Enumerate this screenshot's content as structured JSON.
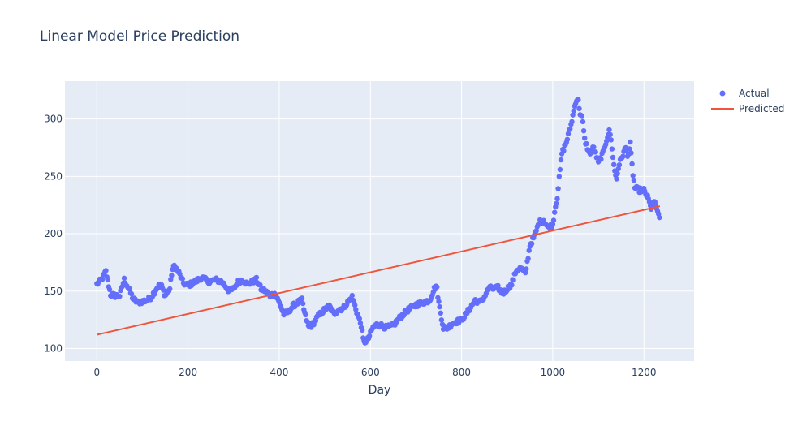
{
  "chart_data": {
    "type": "scatter",
    "title": "Linear Model Price Prediction",
    "xlabel": "Day",
    "ylabel": "",
    "xlim": [
      -70,
      1310
    ],
    "ylim": [
      89,
      333
    ],
    "xticks": [
      0,
      200,
      400,
      600,
      800,
      1000,
      1200
    ],
    "yticks": [
      100,
      150,
      200,
      250,
      300
    ],
    "legend_position": "top-right",
    "grid": true,
    "colors": {
      "plot_bg": "#e5ecf6",
      "grid": "#ffffff",
      "actual": "#636efa",
      "predicted": "#ef553b",
      "text": "#2a3f5f"
    },
    "series": [
      {
        "name": "Actual",
        "mode": "markers",
        "anchors": [
          [
            0,
            156
          ],
          [
            10,
            160
          ],
          [
            20,
            167
          ],
          [
            25,
            157
          ],
          [
            30,
            147
          ],
          [
            40,
            146
          ],
          [
            50,
            146
          ],
          [
            60,
            160
          ],
          [
            70,
            152
          ],
          [
            80,
            143
          ],
          [
            90,
            140
          ],
          [
            100,
            141
          ],
          [
            110,
            142
          ],
          [
            120,
            145
          ],
          [
            130,
            152
          ],
          [
            140,
            156
          ],
          [
            150,
            146
          ],
          [
            160,
            152
          ],
          [
            165,
            168
          ],
          [
            170,
            172
          ],
          [
            180,
            166
          ],
          [
            190,
            157
          ],
          [
            200,
            155
          ],
          [
            215,
            158
          ],
          [
            230,
            162
          ],
          [
            245,
            158
          ],
          [
            260,
            160
          ],
          [
            275,
            158
          ],
          [
            290,
            150
          ],
          [
            300,
            152
          ],
          [
            310,
            158
          ],
          [
            320,
            160
          ],
          [
            330,
            156
          ],
          [
            340,
            158
          ],
          [
            350,
            160
          ],
          [
            360,
            152
          ],
          [
            370,
            150
          ],
          [
            380,
            146
          ],
          [
            390,
            148
          ],
          [
            400,
            140
          ],
          [
            410,
            130
          ],
          [
            420,
            132
          ],
          [
            430,
            137
          ],
          [
            440,
            140
          ],
          [
            450,
            142
          ],
          [
            455,
            132
          ],
          [
            465,
            118
          ],
          [
            475,
            122
          ],
          [
            485,
            128
          ],
          [
            500,
            134
          ],
          [
            510,
            137
          ],
          [
            520,
            130
          ],
          [
            530,
            134
          ],
          [
            540,
            135
          ],
          [
            550,
            140
          ],
          [
            560,
            145
          ],
          [
            570,
            132
          ],
          [
            580,
            120
          ],
          [
            585,
            105
          ],
          [
            595,
            108
          ],
          [
            605,
            118
          ],
          [
            615,
            121
          ],
          [
            625,
            120
          ],
          [
            635,
            118
          ],
          [
            650,
            120
          ],
          [
            665,
            127
          ],
          [
            680,
            133
          ],
          [
            700,
            138
          ],
          [
            715,
            140
          ],
          [
            730,
            142
          ],
          [
            740,
            152
          ],
          [
            745,
            155
          ],
          [
            750,
            140
          ],
          [
            760,
            118
          ],
          [
            770,
            118
          ],
          [
            780,
            122
          ],
          [
            800,
            125
          ],
          [
            810,
            130
          ],
          [
            820,
            136
          ],
          [
            830,
            142
          ],
          [
            840,
            140
          ],
          [
            850,
            145
          ],
          [
            860,
            153
          ],
          [
            870,
            152
          ],
          [
            880,
            153
          ],
          [
            890,
            148
          ],
          [
            900,
            152
          ],
          [
            910,
            156
          ],
          [
            920,
            168
          ],
          [
            930,
            170
          ],
          [
            940,
            165
          ],
          [
            950,
            190
          ],
          [
            960,
            198
          ],
          [
            970,
            210
          ],
          [
            980,
            212
          ],
          [
            990,
            205
          ],
          [
            1000,
            208
          ],
          [
            1005,
            222
          ],
          [
            1010,
            232
          ],
          [
            1015,
            252
          ],
          [
            1020,
            270
          ],
          [
            1030,
            280
          ],
          [
            1040,
            295
          ],
          [
            1045,
            305
          ],
          [
            1050,
            315
          ],
          [
            1055,
            318
          ],
          [
            1060,
            305
          ],
          [
            1065,
            300
          ],
          [
            1070,
            282
          ],
          [
            1080,
            270
          ],
          [
            1090,
            275
          ],
          [
            1100,
            262
          ],
          [
            1110,
            270
          ],
          [
            1120,
            285
          ],
          [
            1125,
            290
          ],
          [
            1130,
            275
          ],
          [
            1135,
            256
          ],
          [
            1140,
            248
          ],
          [
            1145,
            260
          ],
          [
            1150,
            265
          ],
          [
            1160,
            275
          ],
          [
            1165,
            268
          ],
          [
            1170,
            278
          ],
          [
            1175,
            255
          ],
          [
            1180,
            240
          ],
          [
            1190,
            238
          ],
          [
            1200,
            238
          ],
          [
            1210,
            230
          ],
          [
            1215,
            222
          ],
          [
            1220,
            225
          ],
          [
            1225,
            228
          ],
          [
            1230,
            218
          ],
          [
            1235,
            212
          ]
        ]
      },
      {
        "name": "Predicted",
        "mode": "lines",
        "x": [
          0,
          1235
        ],
        "y": [
          112,
          224
        ]
      }
    ]
  }
}
